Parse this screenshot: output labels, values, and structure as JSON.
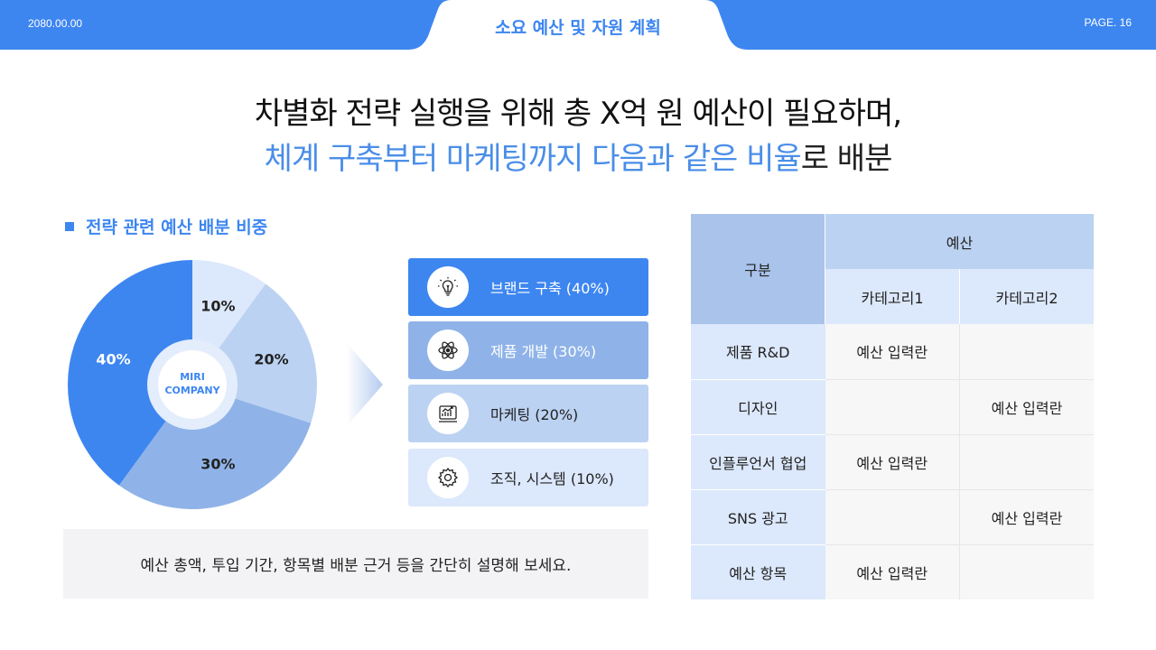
{
  "header": {
    "date": "2080.00.00",
    "title": "소요 예산 및 자원 계획",
    "page": "PAGE. 16"
  },
  "headline": {
    "line1": "차별화 전략 실행을 위해 총 X억 원 예산이 필요하며,",
    "line2_highlight": "체계 구축부터 마케팅까지 다음과 같은 비율",
    "line2_rest": "로 배분"
  },
  "section": {
    "title": "전략 관련 예산 배분 비중"
  },
  "chart_data": {
    "type": "pie",
    "center_label": [
      "MIRI",
      "COMPANY"
    ],
    "slices": [
      {
        "label": "10%",
        "value": 10,
        "color": "#dce8fb"
      },
      {
        "label": "20%",
        "value": 20,
        "color": "#bcd2f2"
      },
      {
        "label": "30%",
        "value": 30,
        "color": "#8fb3e8"
      },
      {
        "label": "40%",
        "value": 40,
        "color": "#3d86f0"
      }
    ]
  },
  "legend": [
    {
      "label": "브랜드 구축 (40%)",
      "icon": "lightbulb-icon",
      "bg": "#3d86f0",
      "fg": "#ffffff"
    },
    {
      "label": "제품 개발 (30%)",
      "icon": "atom-icon",
      "bg": "#8fb3e8",
      "fg": "#ffffff"
    },
    {
      "label": "마케팅 (20%)",
      "icon": "chart-icon",
      "bg": "#bcd2f2",
      "fg": "#222222"
    },
    {
      "label": "조직, 시스템 (10%)",
      "icon": "gear-icon",
      "bg": "#dce8fb",
      "fg": "#222222"
    }
  ],
  "note": "예산 총액, 투입 기간, 항목별 배분 근거 등을 간단히 설명해 보세요.",
  "table": {
    "header_label": "구분",
    "group_label": "예산",
    "columns": [
      "카테고리1",
      "카테고리2"
    ],
    "rows": [
      {
        "label": "제품 R&D",
        "cat1": "예산 입력란",
        "cat2": ""
      },
      {
        "label": "디자인",
        "cat1": "",
        "cat2": "예산 입력란"
      },
      {
        "label": "인플루언서 협업",
        "cat1": "예산 입력란",
        "cat2": ""
      },
      {
        "label": "SNS 광고",
        "cat1": "",
        "cat2": "예산 입력란"
      },
      {
        "label": "예산 항목",
        "cat1": "예산 입력란",
        "cat2": ""
      }
    ]
  },
  "colors": {
    "accent": "#3d86f0",
    "light_blue": "#dce8fb",
    "cell_bg": "#f7f7f8"
  }
}
